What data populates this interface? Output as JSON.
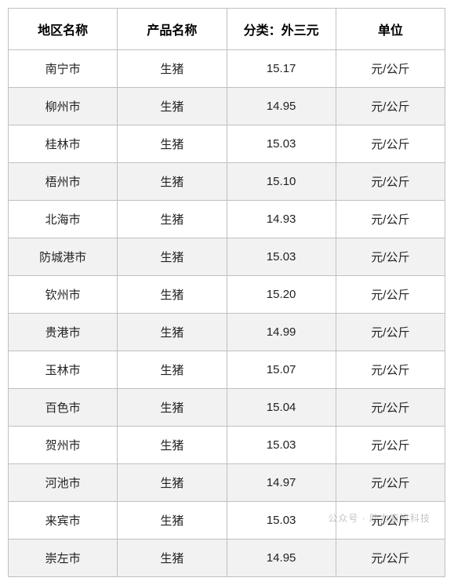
{
  "table": {
    "columns": [
      "地区名称",
      "产品名称",
      "分类：外三元",
      "单位"
    ],
    "column_widths": [
      "25%",
      "25%",
      "25%",
      "25%"
    ],
    "header_fontsize": 16,
    "cell_fontsize": 15,
    "header_bg": "#ffffff",
    "odd_row_bg": "#ffffff",
    "even_row_bg": "#f2f2f2",
    "border_color": "#c0c0c0",
    "text_color": "#222222",
    "rows": [
      [
        "南宁市",
        "生猪",
        "15.17",
        "元/公斤"
      ],
      [
        "柳州市",
        "生猪",
        "14.95",
        "元/公斤"
      ],
      [
        "桂林市",
        "生猪",
        "15.03",
        "元/公斤"
      ],
      [
        "梧州市",
        "生猪",
        "15.10",
        "元/公斤"
      ],
      [
        "北海市",
        "生猪",
        "14.93",
        "元/公斤"
      ],
      [
        "防城港市",
        "生猪",
        "15.03",
        "元/公斤"
      ],
      [
        "钦州市",
        "生猪",
        "15.20",
        "元/公斤"
      ],
      [
        "贵港市",
        "生猪",
        "14.99",
        "元/公斤"
      ],
      [
        "玉林市",
        "生猪",
        "15.07",
        "元/公斤"
      ],
      [
        "百色市",
        "生猪",
        "15.04",
        "元/公斤"
      ],
      [
        "贺州市",
        "生猪",
        "15.03",
        "元/公斤"
      ],
      [
        "河池市",
        "生猪",
        "14.97",
        "元/公斤"
      ],
      [
        "来宾市",
        "生猪",
        "15.03",
        "元/公斤"
      ],
      [
        "崇左市",
        "生猪",
        "14.95",
        "元/公斤"
      ]
    ]
  },
  "watermark": "公众号 · 助力畜牧科技"
}
